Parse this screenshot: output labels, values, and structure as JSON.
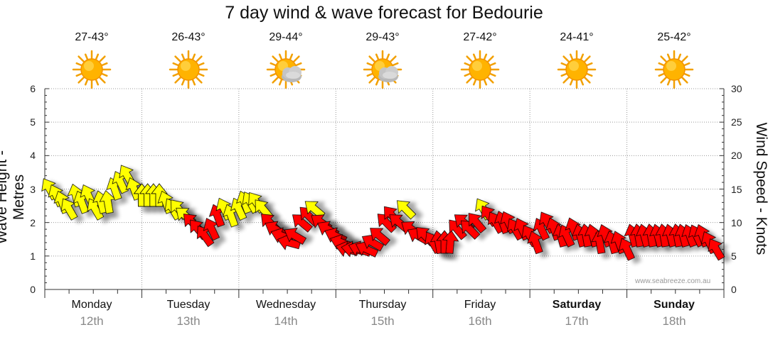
{
  "title": "7 day wind & wave forecast for Bedourie",
  "days": [
    {
      "name": "Monday",
      "date": "12th",
      "temp": "27-43°",
      "icon": "sun-icon",
      "weekend": false
    },
    {
      "name": "Tuesday",
      "date": "13th",
      "temp": "26-43°",
      "icon": "sun-icon",
      "weekend": false
    },
    {
      "name": "Wednesday",
      "date": "14th",
      "temp": "29-44°",
      "icon": "sun-cloud-icon",
      "weekend": false
    },
    {
      "name": "Thursday",
      "date": "15th",
      "temp": "29-43°",
      "icon": "sun-cloud-icon",
      "weekend": false
    },
    {
      "name": "Friday",
      "date": "16th",
      "temp": "27-42°",
      "icon": "sun-icon",
      "weekend": false
    },
    {
      "name": "Saturday",
      "date": "17th",
      "temp": "24-41°",
      "icon": "sun-icon",
      "weekend": true
    },
    {
      "name": "Sunday",
      "date": "18th",
      "temp": "25-42°",
      "icon": "sun-icon",
      "weekend": true
    }
  ],
  "watermark": "www.seabreeze.com.au",
  "colors": {
    "light_wind": "#ffff00",
    "strong_wind": "#ff0000",
    "grid": "#bbbbbb"
  },
  "chart_data": {
    "type": "scatter",
    "left_axis": {
      "label": "Wave Height - Metres",
      "ylim": [
        0,
        6
      ],
      "ticks": [
        "0",
        "1",
        "2",
        "3",
        "4",
        "5",
        "6"
      ]
    },
    "right_axis": {
      "label": "Wind Speed - Knots",
      "ylim": [
        0,
        30
      ],
      "ticks": [
        "0",
        "5",
        "10",
        "15",
        "20",
        "25",
        "30"
      ]
    },
    "x": {
      "unit": "day index (0 = Monday 12th, 7 = end of Sunday 18th)",
      "lim": [
        0,
        7
      ]
    },
    "series": [
      {
        "values_note": "wind arrows: t = time in days, v = wind speed knots, d = rotation degrees of arrow (0 = pointing up), c = 0 yellow / 1 red",
        "arrows": [
          {
            "t": 0.05,
            "v": 15,
            "d": -30,
            "c": 0
          },
          {
            "t": 0.12,
            "v": 14,
            "d": -25,
            "c": 0
          },
          {
            "t": 0.18,
            "v": 13,
            "d": -20,
            "c": 0
          },
          {
            "t": 0.25,
            "v": 12,
            "d": -30,
            "c": 0
          },
          {
            "t": 0.32,
            "v": 14,
            "d": -15,
            "c": 0
          },
          {
            "t": 0.38,
            "v": 13,
            "d": -20,
            "c": 0
          },
          {
            "t": 0.45,
            "v": 14,
            "d": -25,
            "c": 0
          },
          {
            "t": 0.52,
            "v": 12,
            "d": -30,
            "c": 0
          },
          {
            "t": 0.58,
            "v": 13,
            "d": -15,
            "c": 0
          },
          {
            "t": 0.65,
            "v": 13,
            "d": -10,
            "c": 0
          },
          {
            "t": 0.72,
            "v": 15,
            "d": -20,
            "c": 0
          },
          {
            "t": 0.78,
            "v": 16,
            "d": -25,
            "c": 0
          },
          {
            "t": 0.85,
            "v": 17,
            "d": -30,
            "c": 0
          },
          {
            "t": 0.92,
            "v": 15,
            "d": -20,
            "c": 0
          },
          {
            "t": 1.0,
            "v": 14,
            "d": 0,
            "c": 0
          },
          {
            "t": 1.06,
            "v": 14,
            "d": 0,
            "c": 0
          },
          {
            "t": 1.12,
            "v": 14,
            "d": 0,
            "c": 0
          },
          {
            "t": 1.18,
            "v": 14,
            "d": 0,
            "c": 0
          },
          {
            "t": 1.25,
            "v": 13,
            "d": -20,
            "c": 0
          },
          {
            "t": 1.32,
            "v": 12,
            "d": -30,
            "c": 0
          },
          {
            "t": 1.38,
            "v": 12,
            "d": -40,
            "c": 0
          },
          {
            "t": 1.45,
            "v": 11,
            "d": -50,
            "c": 0
          },
          {
            "t": 1.52,
            "v": 10,
            "d": -45,
            "c": 1
          },
          {
            "t": 1.58,
            "v": 9,
            "d": -40,
            "c": 1
          },
          {
            "t": 1.65,
            "v": 8,
            "d": -35,
            "c": 1
          },
          {
            "t": 1.72,
            "v": 9,
            "d": -25,
            "c": 1
          },
          {
            "t": 1.78,
            "v": 11,
            "d": -20,
            "c": 1
          },
          {
            "t": 1.85,
            "v": 12,
            "d": -25,
            "c": 0
          },
          {
            "t": 1.92,
            "v": 11,
            "d": -20,
            "c": 0
          },
          {
            "t": 2.0,
            "v": 12,
            "d": -25,
            "c": 0
          },
          {
            "t": 2.06,
            "v": 13,
            "d": -20,
            "c": 0
          },
          {
            "t": 2.12,
            "v": 13,
            "d": -30,
            "c": 0
          },
          {
            "t": 2.18,
            "v": 13,
            "d": -35,
            "c": 0
          },
          {
            "t": 2.25,
            "v": 12,
            "d": -40,
            "c": 0
          },
          {
            "t": 2.32,
            "v": 10,
            "d": -45,
            "c": 1
          },
          {
            "t": 2.38,
            "v": 9,
            "d": -60,
            "c": 1
          },
          {
            "t": 2.45,
            "v": 8,
            "d": -70,
            "c": 1
          },
          {
            "t": 2.52,
            "v": 7,
            "d": -75,
            "c": 1
          },
          {
            "t": 2.58,
            "v": 8,
            "d": -60,
            "c": 1
          },
          {
            "t": 2.65,
            "v": 10,
            "d": -50,
            "c": 1
          },
          {
            "t": 2.72,
            "v": 11,
            "d": -45,
            "c": 1
          },
          {
            "t": 2.78,
            "v": 12,
            "d": -50,
            "c": 0
          },
          {
            "t": 2.85,
            "v": 10,
            "d": -55,
            "c": 1
          },
          {
            "t": 2.92,
            "v": 9,
            "d": -60,
            "c": 1
          },
          {
            "t": 3.0,
            "v": 8,
            "d": -65,
            "c": 1
          },
          {
            "t": 3.06,
            "v": 7,
            "d": -70,
            "c": 1
          },
          {
            "t": 3.12,
            "v": 6,
            "d": -75,
            "c": 1
          },
          {
            "t": 3.18,
            "v": 6,
            "d": -80,
            "c": 1
          },
          {
            "t": 3.25,
            "v": 6,
            "d": -70,
            "c": 1
          },
          {
            "t": 3.32,
            "v": 6,
            "d": -65,
            "c": 1
          },
          {
            "t": 3.38,
            "v": 7,
            "d": -60,
            "c": 1
          },
          {
            "t": 3.45,
            "v": 8,
            "d": -50,
            "c": 1
          },
          {
            "t": 3.52,
            "v": 10,
            "d": -45,
            "c": 1
          },
          {
            "t": 3.58,
            "v": 11,
            "d": -40,
            "c": 1
          },
          {
            "t": 3.65,
            "v": 10,
            "d": -50,
            "c": 1
          },
          {
            "t": 3.72,
            "v": 12,
            "d": -45,
            "c": 0
          },
          {
            "t": 3.78,
            "v": 9,
            "d": -55,
            "c": 1
          },
          {
            "t": 3.85,
            "v": 8,
            "d": -60,
            "c": 1
          },
          {
            "t": 3.92,
            "v": 8,
            "d": -45,
            "c": 1
          },
          {
            "t": 4.0,
            "v": 7,
            "d": -30,
            "c": 1
          },
          {
            "t": 4.06,
            "v": 7,
            "d": -10,
            "c": 1
          },
          {
            "t": 4.12,
            "v": 7,
            "d": 0,
            "c": 1
          },
          {
            "t": 4.18,
            "v": 7,
            "d": 5,
            "c": 1
          },
          {
            "t": 4.25,
            "v": 9,
            "d": -40,
            "c": 1
          },
          {
            "t": 4.32,
            "v": 10,
            "d": -50,
            "c": 1
          },
          {
            "t": 4.38,
            "v": 9,
            "d": -45,
            "c": 1
          },
          {
            "t": 4.45,
            "v": 10,
            "d": -40,
            "c": 1
          },
          {
            "t": 4.52,
            "v": 12,
            "d": -30,
            "c": 0
          },
          {
            "t": 4.58,
            "v": 11,
            "d": -35,
            "c": 1
          },
          {
            "t": 4.65,
            "v": 10,
            "d": -30,
            "c": 1
          },
          {
            "t": 4.72,
            "v": 10,
            "d": -20,
            "c": 1
          },
          {
            "t": 4.78,
            "v": 10,
            "d": -25,
            "c": 1
          },
          {
            "t": 4.85,
            "v": 9,
            "d": -30,
            "c": 1
          },
          {
            "t": 4.92,
            "v": 9,
            "d": -25,
            "c": 1
          },
          {
            "t": 5.0,
            "v": 8,
            "d": -30,
            "c": 1
          },
          {
            "t": 5.06,
            "v": 7,
            "d": -20,
            "c": 1
          },
          {
            "t": 5.12,
            "v": 9,
            "d": -25,
            "c": 1
          },
          {
            "t": 5.18,
            "v": 10,
            "d": -30,
            "c": 1
          },
          {
            "t": 5.25,
            "v": 9,
            "d": -20,
            "c": 1
          },
          {
            "t": 5.32,
            "v": 8,
            "d": -15,
            "c": 1
          },
          {
            "t": 5.38,
            "v": 8,
            "d": -25,
            "c": 1
          },
          {
            "t": 5.45,
            "v": 9,
            "d": -20,
            "c": 1
          },
          {
            "t": 5.52,
            "v": 8,
            "d": -15,
            "c": 1
          },
          {
            "t": 5.58,
            "v": 8,
            "d": -10,
            "c": 1
          },
          {
            "t": 5.65,
            "v": 8,
            "d": -15,
            "c": 1
          },
          {
            "t": 5.72,
            "v": 7,
            "d": -10,
            "c": 1
          },
          {
            "t": 5.78,
            "v": 8,
            "d": -20,
            "c": 1
          },
          {
            "t": 5.85,
            "v": 7,
            "d": -15,
            "c": 1
          },
          {
            "t": 5.92,
            "v": 7,
            "d": -20,
            "c": 1
          },
          {
            "t": 6.0,
            "v": 6,
            "d": -25,
            "c": 1
          },
          {
            "t": 6.06,
            "v": 8,
            "d": -15,
            "c": 1
          },
          {
            "t": 6.12,
            "v": 8,
            "d": -10,
            "c": 1
          },
          {
            "t": 6.18,
            "v": 8,
            "d": -15,
            "c": 1
          },
          {
            "t": 6.25,
            "v": 8,
            "d": -10,
            "c": 1
          },
          {
            "t": 6.32,
            "v": 8,
            "d": -15,
            "c": 1
          },
          {
            "t": 6.38,
            "v": 8,
            "d": -10,
            "c": 1
          },
          {
            "t": 6.45,
            "v": 8,
            "d": -15,
            "c": 1
          },
          {
            "t": 6.52,
            "v": 8,
            "d": -10,
            "c": 1
          },
          {
            "t": 6.58,
            "v": 8,
            "d": -15,
            "c": 1
          },
          {
            "t": 6.65,
            "v": 8,
            "d": -20,
            "c": 1
          },
          {
            "t": 6.72,
            "v": 8,
            "d": -25,
            "c": 1
          },
          {
            "t": 6.78,
            "v": 8,
            "d": -20,
            "c": 1
          },
          {
            "t": 6.85,
            "v": 7,
            "d": -25,
            "c": 1
          },
          {
            "t": 6.92,
            "v": 6,
            "d": -30,
            "c": 1
          }
        ]
      }
    ],
    "grid": true
  }
}
